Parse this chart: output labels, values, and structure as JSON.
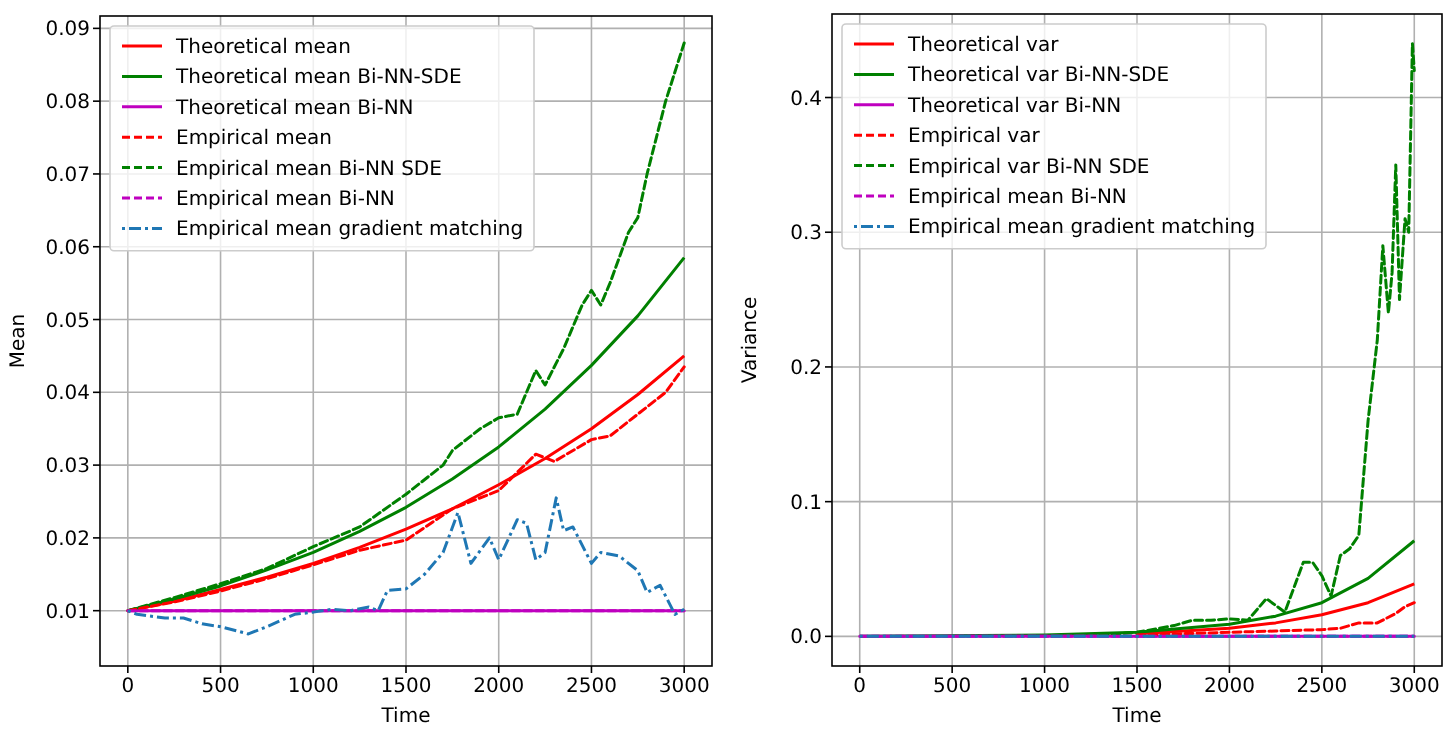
{
  "chart_data": [
    {
      "type": "line",
      "xlabel": "Time",
      "ylabel": "Mean",
      "xlim": [
        -150,
        3150
      ],
      "ylim": [
        0.0024,
        0.0917
      ],
      "xticks": [
        0,
        500,
        1000,
        1500,
        2000,
        2500,
        3000
      ],
      "yticks": [
        0.01,
        0.02,
        0.03,
        0.04,
        0.05,
        0.06,
        0.07,
        0.08,
        0.09
      ],
      "grid": true,
      "legend": "top left",
      "series": [
        {
          "name": "Theoretical mean",
          "color": "#ff0000",
          "line_style": "solid",
          "x": [
            0,
            250,
            500,
            750,
            1000,
            1250,
            1500,
            1750,
            2000,
            2250,
            2500,
            2750,
            3000
          ],
          "values": [
            0.01,
            0.0113,
            0.0129,
            0.0146,
            0.0165,
            0.0187,
            0.0212,
            0.024,
            0.0273,
            0.0309,
            0.035,
            0.0397,
            0.045
          ]
        },
        {
          "name": "Theoretical mean Bi-NN-SDE",
          "color": "#008000",
          "line_style": "solid",
          "x": [
            0,
            250,
            500,
            750,
            1000,
            1250,
            1500,
            1750,
            2000,
            2250,
            2500,
            2750,
            3000
          ],
          "values": [
            0.01,
            0.0116,
            0.0134,
            0.0156,
            0.018,
            0.0209,
            0.0242,
            0.0281,
            0.0325,
            0.0377,
            0.0437,
            0.0505,
            0.0585
          ]
        },
        {
          "name": "Theoretical mean Bi-NN",
          "color": "#bf00bf",
          "line_style": "solid",
          "x": [
            0,
            3000
          ],
          "values": [
            0.01,
            0.01
          ]
        },
        {
          "name": "Empirical mean",
          "color": "#ff0000",
          "line_style": "dashed",
          "x": [
            0,
            250,
            500,
            750,
            1000,
            1250,
            1500,
            1750,
            2000,
            2200,
            2300,
            2500,
            2600,
            2750,
            2900,
            3000
          ],
          "values": [
            0.01,
            0.0112,
            0.0127,
            0.0144,
            0.0163,
            0.0183,
            0.0197,
            0.024,
            0.0265,
            0.0315,
            0.0305,
            0.0335,
            0.034,
            0.037,
            0.04,
            0.0435
          ]
        },
        {
          "name": "Empirical mean Bi-NN SDE",
          "color": "#008000",
          "line_style": "dashed",
          "x": [
            0,
            250,
            500,
            750,
            1000,
            1250,
            1500,
            1700,
            1750,
            1900,
            2000,
            2100,
            2200,
            2250,
            2350,
            2450,
            2500,
            2550,
            2600,
            2700,
            2750,
            2800,
            2900,
            2950,
            3000
          ],
          "values": [
            0.01,
            0.0118,
            0.0137,
            0.0158,
            0.0188,
            0.0215,
            0.026,
            0.03,
            0.032,
            0.035,
            0.0365,
            0.037,
            0.043,
            0.041,
            0.046,
            0.052,
            0.054,
            0.052,
            0.055,
            0.062,
            0.064,
            0.07,
            0.08,
            0.084,
            0.088
          ]
        },
        {
          "name": "Empirical mean Bi-NN",
          "color": "#bf00bf",
          "line_style": "dashed",
          "x": [
            0,
            3000
          ],
          "values": [
            0.01,
            0.01
          ]
        },
        {
          "name": "Empirical mean gradient matching",
          "color": "#1f77b4",
          "line_style": "dashdot",
          "x": [
            0,
            50,
            200,
            300,
            400,
            500,
            650,
            750,
            900,
            1000,
            1100,
            1200,
            1300,
            1350,
            1400,
            1500,
            1600,
            1700,
            1780,
            1850,
            1950,
            2000,
            2100,
            2150,
            2200,
            2250,
            2310,
            2350,
            2400,
            2500,
            2550,
            2650,
            2750,
            2800,
            2870,
            2950,
            3000
          ],
          "values": [
            0.01,
            0.0095,
            0.009,
            0.009,
            0.0082,
            0.0078,
            0.0068,
            0.0078,
            0.0095,
            0.0098,
            0.0102,
            0.01,
            0.0105,
            0.01,
            0.0128,
            0.013,
            0.015,
            0.018,
            0.0235,
            0.0165,
            0.02,
            0.017,
            0.0225,
            0.022,
            0.017,
            0.018,
            0.0255,
            0.021,
            0.0215,
            0.0165,
            0.018,
            0.0175,
            0.0155,
            0.0125,
            0.0135,
            0.0095,
            0.0102
          ]
        }
      ]
    },
    {
      "type": "line",
      "xlabel": "Time",
      "ylabel": "Variance",
      "xlim": [
        -150,
        3150
      ],
      "ylim": [
        -0.022,
        0.462
      ],
      "xticks": [
        0,
        500,
        1000,
        1500,
        2000,
        2500,
        3000
      ],
      "yticks": [
        {
          "value": 0,
          "label": "0.0"
        },
        0.1,
        0.2,
        0.3,
        0.4
      ],
      "grid": true,
      "legend": "top left",
      "series": [
        {
          "name": "Theoretical var",
          "color": "#ff0000",
          "line_style": "solid",
          "x": [
            1500,
            2000,
            2250,
            2500,
            2750,
            3000
          ],
          "values": [
            0.002,
            0.006,
            0.01,
            0.016,
            0.025,
            0.039
          ]
        },
        {
          "name": "Theoretical var Bi-NN-SDE",
          "color": "#008000",
          "line_style": "solid",
          "x": [
            0,
            1000,
            1500,
            2000,
            2250,
            2500,
            2750,
            3000
          ],
          "values": [
            0,
            0.001,
            0.003,
            0.009,
            0.015,
            0.025,
            0.043,
            0.071
          ]
        },
        {
          "name": "Theoretical var Bi-NN",
          "color": "#bf00bf",
          "line_style": "solid",
          "x": [
            0,
            3000
          ],
          "values": [
            0,
            0
          ]
        },
        {
          "name": "Empirical var",
          "color": "#ff0000",
          "line_style": "dashed",
          "x": [
            1500,
            2000,
            2250,
            2500,
            2600,
            2700,
            2800,
            2900,
            2950,
            3000
          ],
          "values": [
            0.001,
            0.003,
            0.004,
            0.005,
            0.006,
            0.01,
            0.01,
            0.017,
            0.022,
            0.025
          ]
        },
        {
          "name": "Empirical var Bi-NN SDE",
          "color": "#008000",
          "line_style": "dashed",
          "x": [
            1300,
            1500,
            1700,
            1800,
            1900,
            2000,
            2100,
            2200,
            2300,
            2400,
            2450,
            2500,
            2550,
            2600,
            2650,
            2700,
            2750,
            2800,
            2830,
            2860,
            2880,
            2900,
            2920,
            2950,
            2970,
            2990,
            3000
          ],
          "values": [
            0.001,
            0.003,
            0.008,
            0.012,
            0.012,
            0.013,
            0.012,
            0.028,
            0.018,
            0.055,
            0.055,
            0.045,
            0.03,
            0.06,
            0.065,
            0.075,
            0.16,
            0.22,
            0.29,
            0.24,
            0.27,
            0.35,
            0.25,
            0.31,
            0.3,
            0.44,
            0.42
          ]
        },
        {
          "name": "Empirical mean Bi-NN",
          "color": "#bf00bf",
          "line_style": "dashed",
          "x": [
            0,
            3000
          ],
          "values": [
            0,
            0
          ]
        },
        {
          "name": "Empirical mean gradient matching",
          "color": "#1f77b4",
          "line_style": "dashdot",
          "x": [
            0,
            3000
          ],
          "values": [
            0,
            0
          ]
        }
      ]
    }
  ]
}
